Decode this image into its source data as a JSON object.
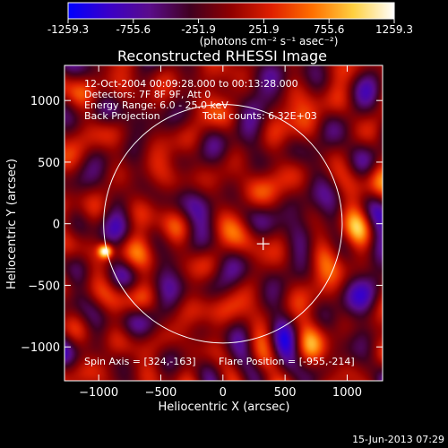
{
  "colorbar": {
    "ticks": [
      "-1259.3",
      "-755.6",
      "-251.9",
      "251.9",
      "755.6",
      "1259.3"
    ],
    "tick_values": [
      -1259.3,
      -755.6,
      -251.9,
      251.9,
      755.6,
      1259.3
    ],
    "range": [
      -1259.3,
      1259.3
    ],
    "unit_label": "(photons cm⁻² s⁻¹ asec⁻²)",
    "colors": [
      "#0000ff",
      "#3a00c8",
      "#5a0c8a",
      "#400020",
      "#900000",
      "#e02000",
      "#ff7000",
      "#ffd040",
      "#ffffff"
    ]
  },
  "chart_data": {
    "type": "heatmap",
    "title": "Reconstructed RHESSI Image",
    "xlabel": "Heliocentric X (arcsec)",
    "ylabel": "Heliocentric Y (arcsec)",
    "xlim": [
      -1275,
      1285
    ],
    "ylim": [
      -1275,
      1285
    ],
    "xticks": [
      -1000,
      -500,
      0,
      500,
      1000
    ],
    "yticks": [
      -1000,
      -500,
      0,
      500,
      1000
    ],
    "annotations": [
      "12-Oct-2004 00:09:28.000 to 00:13:28.000",
      "Detectors: 7F 8F 9F, Att 0",
      "Energy Range: 6.0 - 25.0 keV",
      "Back Projection",
      "Total counts: 6.32E+03"
    ],
    "footer": {
      "spin_axis": "Spin Axis = [324,-163]",
      "flare_position": "Flare Position = [-955,-214]"
    },
    "solar_limb": {
      "center": [
        0,
        0
      ],
      "radius": 960
    },
    "spin_axis_marker": [
      324,
      -163
    ],
    "bright_source": {
      "x": -955,
      "y": -214,
      "value": 1259.3
    },
    "grid": false
  },
  "timestamp": "15-Jun-2013 07:29"
}
